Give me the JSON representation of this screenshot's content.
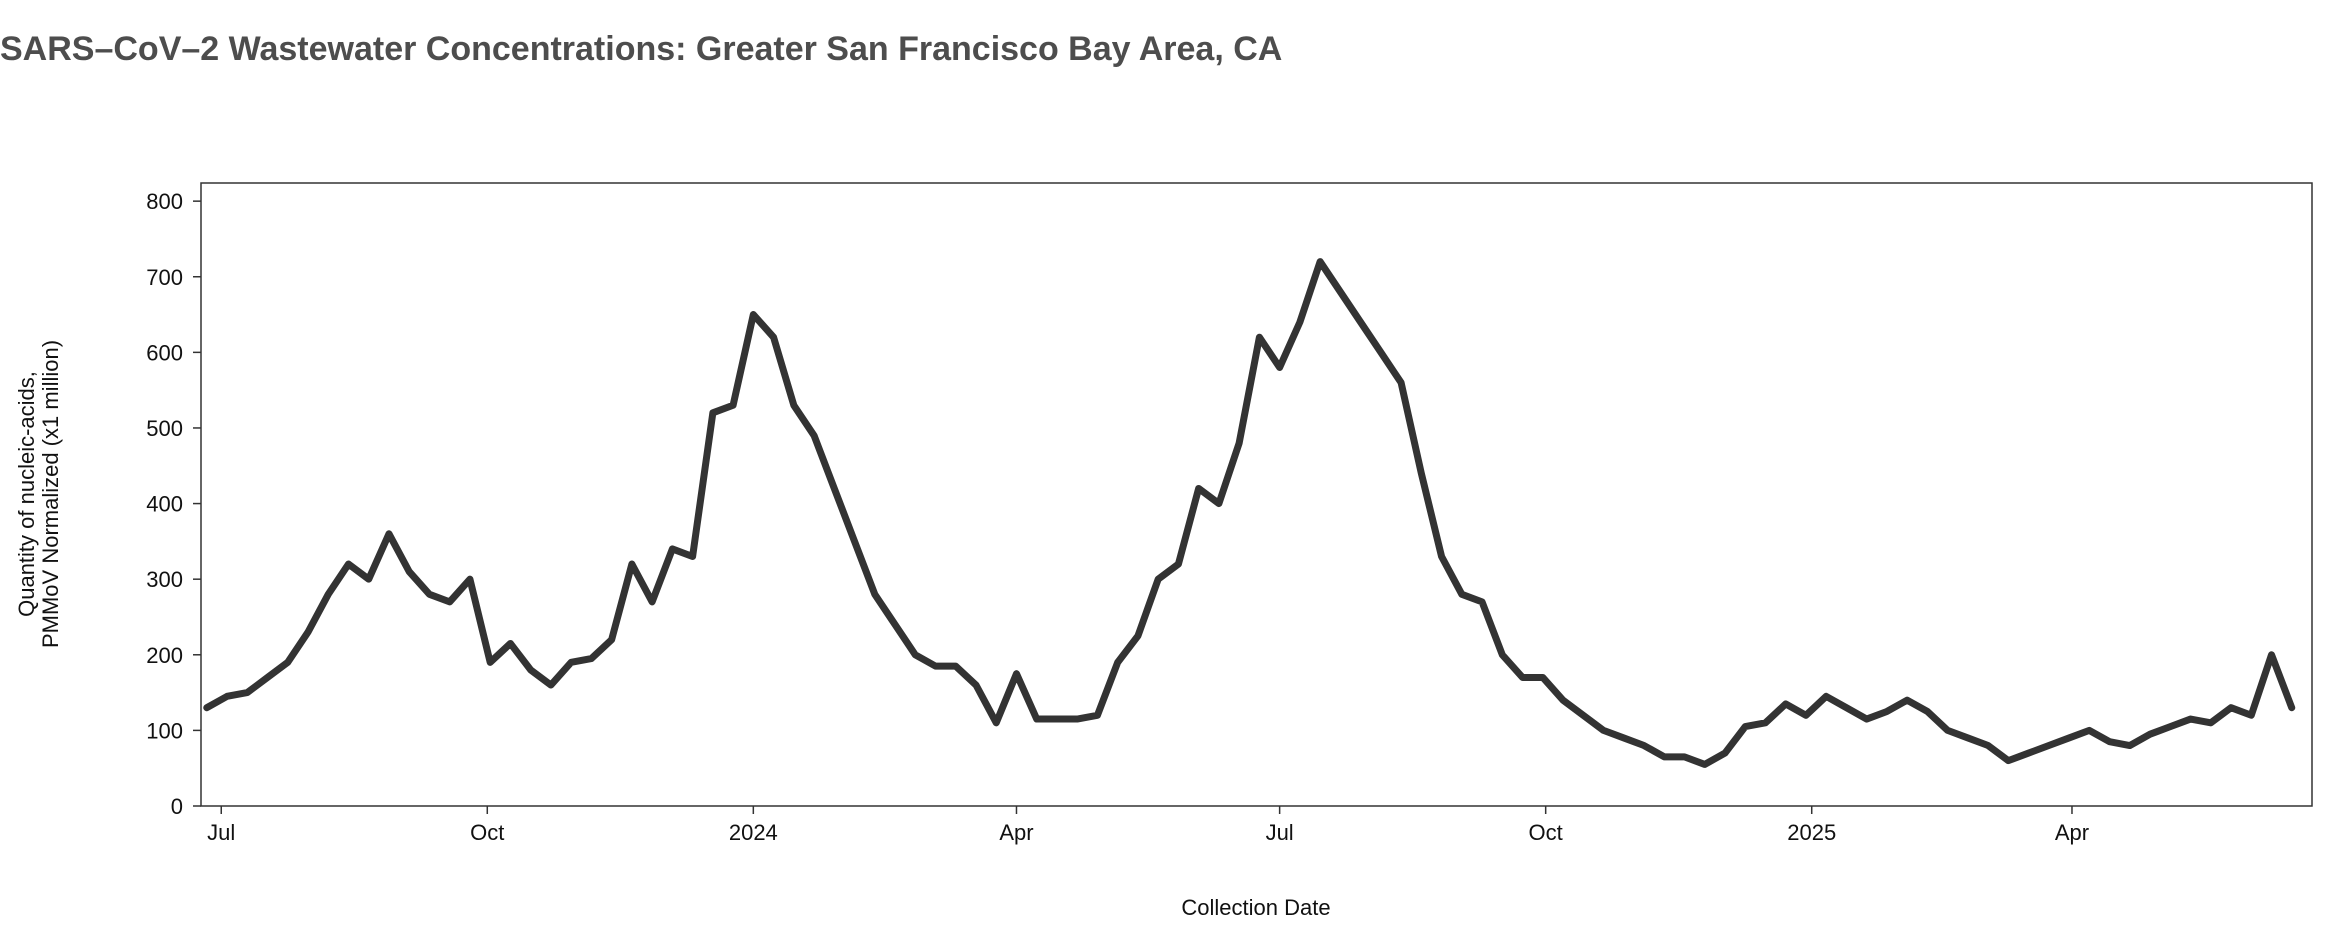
{
  "chart_data": {
    "type": "line",
    "title": "SARS–CoV–2 Wastewater Concentrations: Greater San Francisco Bay Area, CA",
    "x_label": "Collection Date",
    "y_label": [
      "Quantity of nucleic-acids,",
      "PMMoV Normalized (x1 million)"
    ],
    "xlim": [
      "2023-06-24",
      "2025-06-23"
    ],
    "xticks": [
      {
        "value": "2023-07-01",
        "label": "Jul"
      },
      {
        "value": "2023-10-01",
        "label": "Oct"
      },
      {
        "value": "2024-01-01",
        "label": "2024"
      },
      {
        "value": "2024-04-01",
        "label": "Apr"
      },
      {
        "value": "2024-07-01",
        "label": "Jul"
      },
      {
        "value": "2024-10-01",
        "label": "Oct"
      },
      {
        "value": "2025-01-01",
        "label": "2025"
      },
      {
        "value": "2025-04-01",
        "label": "Apr"
      }
    ],
    "ylim": [
      0,
      824
    ],
    "yticks": [
      0,
      100,
      200,
      300,
      400,
      500,
      600,
      700,
      800
    ],
    "grid": false,
    "x": [
      "2023-06-26",
      "2023-07-03",
      "2023-07-10",
      "2023-07-17",
      "2023-07-24",
      "2023-07-31",
      "2023-08-07",
      "2023-08-14",
      "2023-08-21",
      "2023-08-28",
      "2023-09-04",
      "2023-09-11",
      "2023-09-18",
      "2023-09-25",
      "2023-10-02",
      "2023-10-09",
      "2023-10-16",
      "2023-10-23",
      "2023-10-30",
      "2023-11-06",
      "2023-11-13",
      "2023-11-20",
      "2023-11-27",
      "2023-12-04",
      "2023-12-11",
      "2023-12-18",
      "2023-12-25",
      "2024-01-01",
      "2024-01-08",
      "2024-01-15",
      "2024-01-22",
      "2024-01-29",
      "2024-02-05",
      "2024-02-12",
      "2024-02-19",
      "2024-02-26",
      "2024-03-04",
      "2024-03-11",
      "2024-03-18",
      "2024-03-25",
      "2024-04-01",
      "2024-04-08",
      "2024-04-15",
      "2024-04-22",
      "2024-04-29",
      "2024-05-06",
      "2024-05-13",
      "2024-05-20",
      "2024-05-27",
      "2024-06-03",
      "2024-06-10",
      "2024-06-17",
      "2024-06-24",
      "2024-07-01",
      "2024-07-08",
      "2024-07-15",
      "2024-07-22",
      "2024-07-29",
      "2024-08-05",
      "2024-08-12",
      "2024-08-19",
      "2024-08-26",
      "2024-09-02",
      "2024-09-09",
      "2024-09-16",
      "2024-09-23",
      "2024-09-30",
      "2024-10-07",
      "2024-10-14",
      "2024-10-21",
      "2024-10-28",
      "2024-11-04",
      "2024-11-11",
      "2024-11-18",
      "2024-11-25",
      "2024-12-02",
      "2024-12-09",
      "2024-12-16",
      "2024-12-23",
      "2024-12-30",
      "2025-01-06",
      "2025-01-13",
      "2025-01-20",
      "2025-01-27",
      "2025-02-03",
      "2025-02-10",
      "2025-02-17",
      "2025-02-24",
      "2025-03-03",
      "2025-03-10",
      "2025-03-17",
      "2025-03-24",
      "2025-03-31",
      "2025-04-07",
      "2025-04-14",
      "2025-04-21",
      "2025-04-28",
      "2025-05-05",
      "2025-05-12",
      "2025-05-19",
      "2025-05-26",
      "2025-06-02",
      "2025-06-09",
      "2025-06-16"
    ],
    "series": [
      {
        "color": "#333333",
        "values": [
          130,
          145,
          150,
          170,
          190,
          230,
          280,
          320,
          300,
          360,
          310,
          280,
          270,
          300,
          190,
          215,
          180,
          160,
          190,
          195,
          220,
          320,
          270,
          340,
          330,
          520,
          530,
          650,
          620,
          530,
          490,
          420,
          350,
          280,
          240,
          200,
          185,
          185,
          160,
          110,
          175,
          115,
          115,
          115,
          120,
          190,
          225,
          300,
          320,
          420,
          400,
          480,
          620,
          580,
          640,
          720,
          680,
          640,
          600,
          560,
          440,
          330,
          280,
          270,
          200,
          170,
          170,
          140,
          120,
          100,
          90,
          80,
          65,
          65,
          55,
          70,
          105,
          110,
          135,
          120,
          145,
          130,
          115,
          125,
          140,
          125,
          100,
          90,
          80,
          60,
          70,
          80,
          90,
          100,
          85,
          80,
          95,
          105,
          115,
          110,
          130,
          120,
          200,
          130
        ]
      }
    ]
  }
}
